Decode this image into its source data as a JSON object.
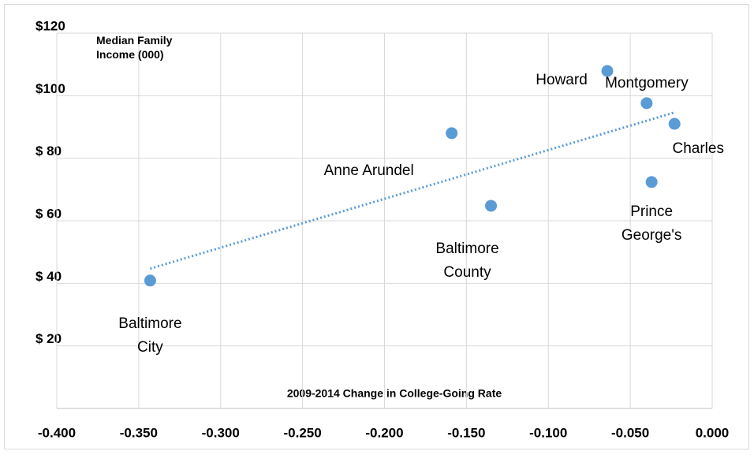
{
  "chart_data": {
    "type": "scatter",
    "x_label": "2009-2014 Change in College-Going Rate",
    "y_label": "Median Family Income (000)",
    "labels": [
      [
        "Baltimore",
        "City"
      ],
      [
        "Anne Arundel"
      ],
      [
        "Baltimore",
        "County"
      ],
      [
        "Howard"
      ],
      [
        "Montgomery"
      ],
      [
        "Charles"
      ],
      [
        "Prince",
        "George's"
      ]
    ],
    "x": [
      -0.343,
      -0.159,
      -0.135,
      -0.064,
      -0.04,
      -0.023,
      -0.037
    ],
    "values": [
      40.9,
      88.0,
      64.8,
      107.9,
      97.6,
      91.0,
      72.4
    ],
    "color": "#5b9bd5",
    "trendline": "linear",
    "xlim": [
      -0.4,
      0.0
    ],
    "xticks": [
      {
        "value": -0.4,
        "label": "-0.400"
      },
      {
        "value": -0.35,
        "label": "-0.350"
      },
      {
        "value": -0.3,
        "label": "-0.300"
      },
      {
        "value": -0.25,
        "label": "-0.250"
      },
      {
        "value": -0.2,
        "label": "-0.200"
      },
      {
        "value": -0.15,
        "label": "-0.150"
      },
      {
        "value": -0.1,
        "label": "-0.100"
      },
      {
        "value": -0.05,
        "label": "-0.050"
      },
      {
        "value": 0.0,
        "label": "0.000"
      }
    ],
    "ylim": [
      0,
      120
    ],
    "yticks": [
      {
        "value": 20,
        "label": "$ 20"
      },
      {
        "value": 40,
        "label": "$ 40"
      },
      {
        "value": 60,
        "label": "$ 60"
      },
      {
        "value": 80,
        "label": "$ 80"
      },
      {
        "value": 100,
        "label": "$100"
      },
      {
        "value": 120,
        "label": "$120"
      }
    ],
    "grid": true
  }
}
